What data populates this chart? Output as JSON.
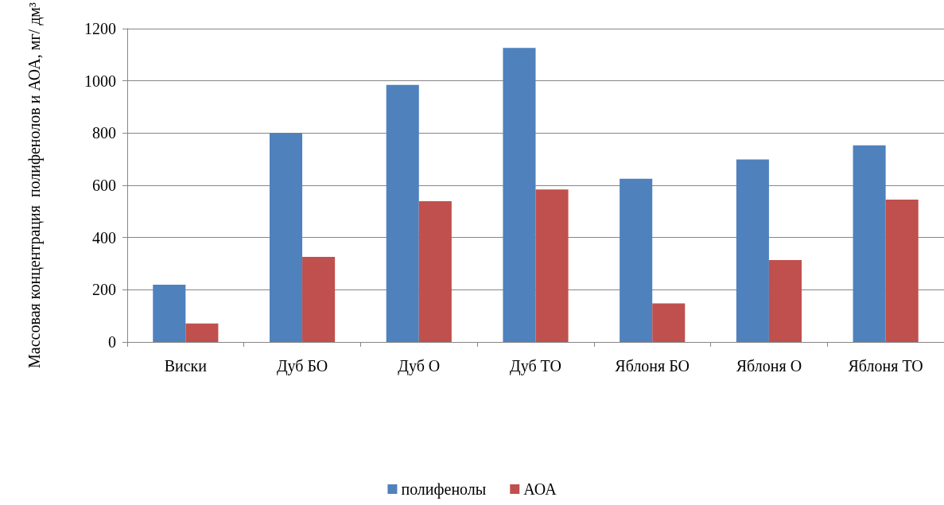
{
  "chart_data": {
    "type": "bar",
    "categories": [
      "Виски",
      "Дуб БО",
      "Дуб О",
      "Дуб ТО",
      "Яблоня БО",
      "Яблоня О",
      "Яблоня ТО"
    ],
    "series": [
      {
        "name": "полифенолы",
        "color": "#4f81bd",
        "values": [
          219,
          800,
          984,
          1126,
          625,
          699,
          753
        ]
      },
      {
        "name": "АОА",
        "color": "#c0504d",
        "values": [
          71,
          326,
          539,
          584,
          148,
          314,
          545
        ]
      }
    ],
    "ylabel": "Массовая концентрация  полифенолов и АОА, мг/ дм³",
    "ylim": [
      0,
      1200
    ],
    "yticks": [
      0,
      200,
      400,
      600,
      800,
      1000,
      1200
    ],
    "grid": "y",
    "legend": "bottom"
  }
}
